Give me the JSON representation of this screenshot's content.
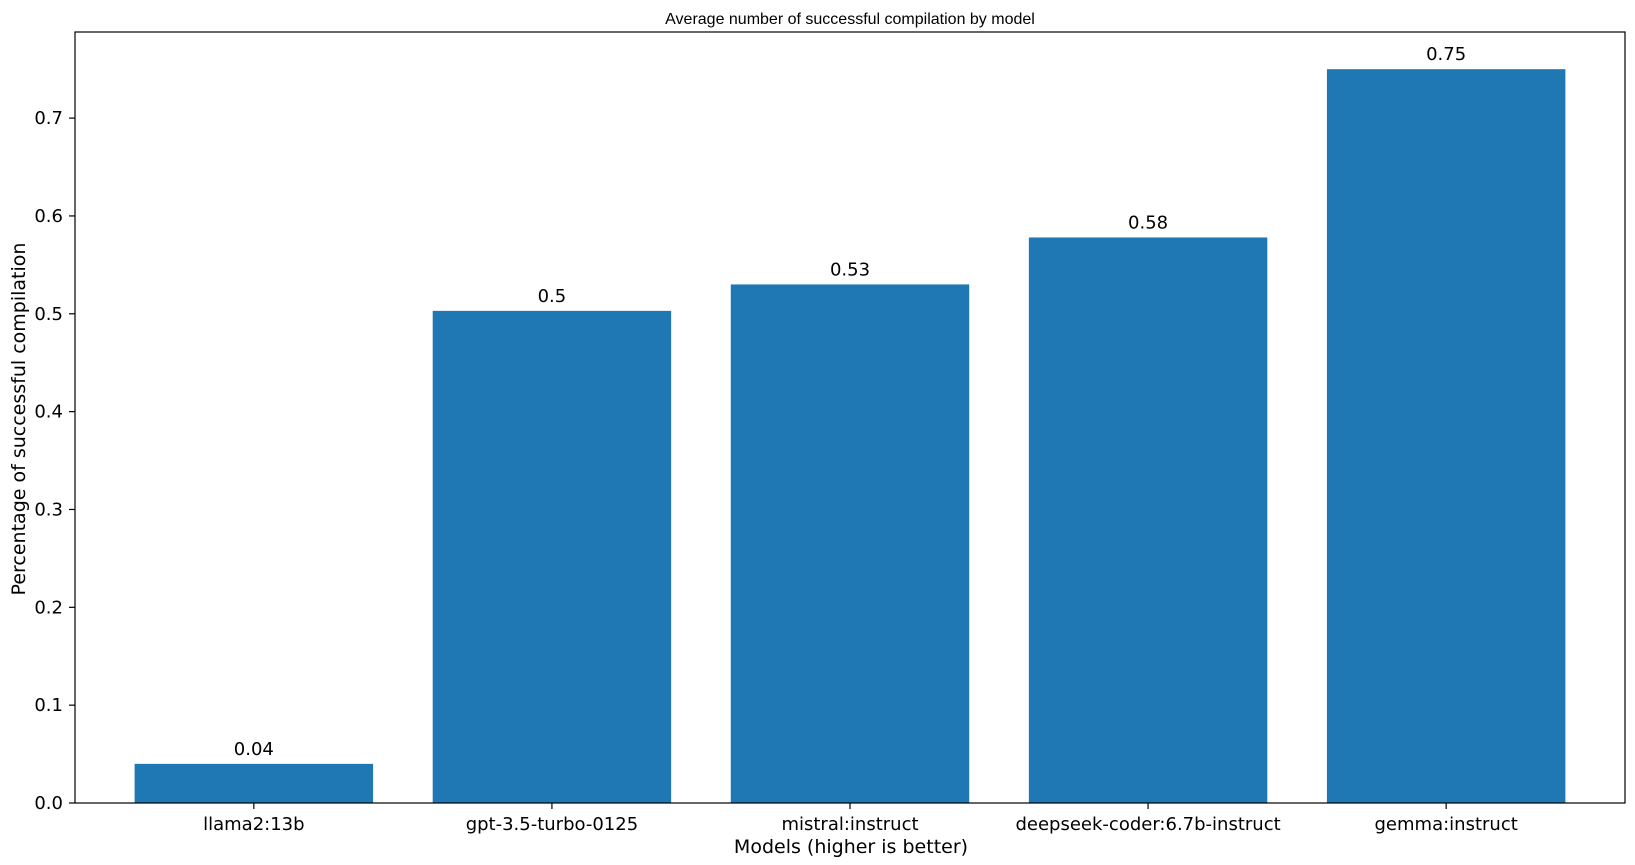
{
  "chart_data": {
    "type": "bar",
    "title": "Average number of successful compilation by model",
    "xlabel": "Models (higher is better)",
    "ylabel": "Percentage of successful compilation",
    "categories": [
      "llama2:13b",
      "gpt-3.5-turbo-0125",
      "mistral:instruct",
      "deepseek-coder:6.7b-instruct",
      "gemma:instruct"
    ],
    "values": [
      0.04,
      0.503,
      0.53,
      0.578,
      0.75
    ],
    "data_labels": [
      "0.04",
      "0.5",
      "0.53",
      "0.58",
      "0.75"
    ],
    "ylim": [
      0,
      0.788
    ],
    "yticks": [
      0.0,
      0.1,
      0.2,
      0.3,
      0.4,
      0.5,
      0.6,
      0.7
    ],
    "ytick_labels": [
      "0.0",
      "0.1",
      "0.2",
      "0.3",
      "0.4",
      "0.5",
      "0.6",
      "0.7"
    ],
    "bar_color": "#1f77b4",
    "grid": false,
    "legend": false
  }
}
